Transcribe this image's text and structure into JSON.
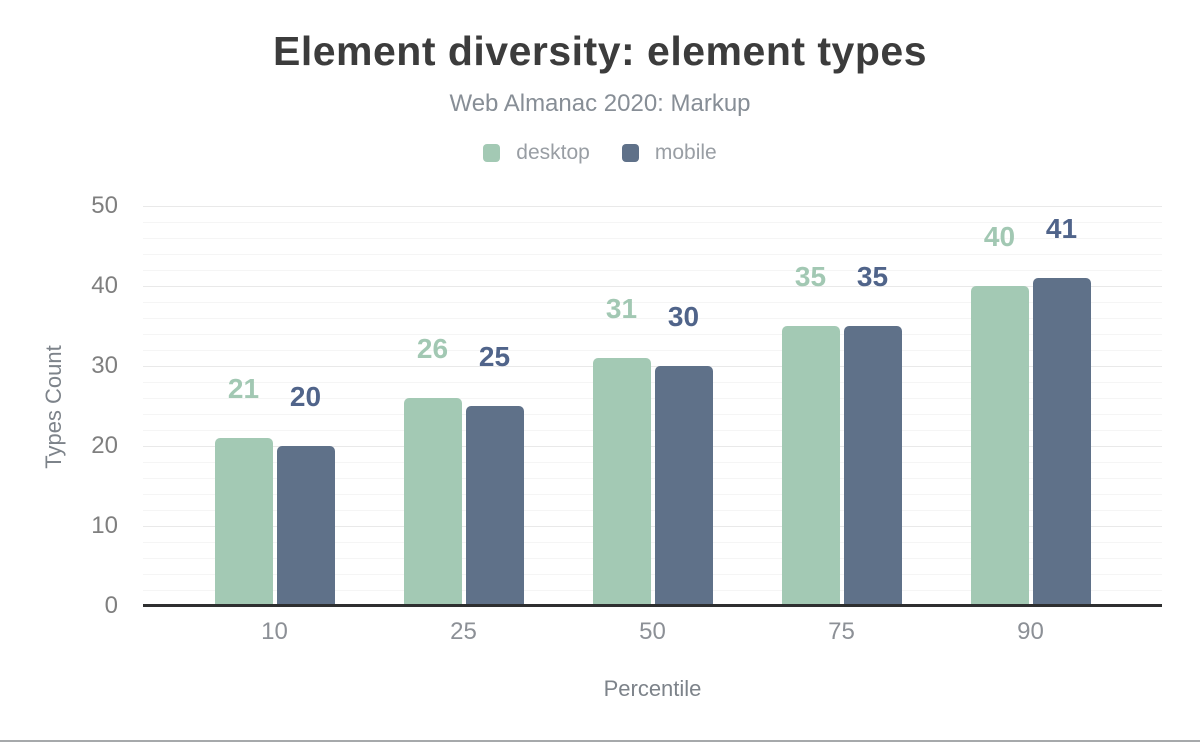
{
  "page": {
    "bottom_border_color": "#a6a9ab"
  },
  "header": {
    "title": "Element diversity: element types",
    "subtitle": "Web Almanac 2020: Markup"
  },
  "axes": {
    "y_title": "Types Count",
    "x_title": "Percentile"
  },
  "chart_data": {
    "type": "bar",
    "title": "Element diversity: element types",
    "subtitle": "Web Almanac 2020: Markup",
    "categories": [
      "10",
      "25",
      "50",
      "75",
      "90"
    ],
    "series": [
      {
        "name": "desktop",
        "color": "#a3c9b4",
        "label_color": "#a2c8b3",
        "values": [
          21,
          26,
          31,
          35,
          40
        ]
      },
      {
        "name": "mobile",
        "color": "#5f7189",
        "label_color": "#50648a",
        "values": [
          20,
          25,
          30,
          35,
          41
        ]
      }
    ],
    "xlabel": "Percentile",
    "ylabel": "Types Count",
    "ylim": [
      0,
      50
    ],
    "yticks": [
      0,
      10,
      20,
      30,
      40,
      50
    ],
    "minor_grid_step": 2,
    "grid": true,
    "legend_position": "top",
    "data_labels": true,
    "axis_line_color": "#2e2f30"
  }
}
